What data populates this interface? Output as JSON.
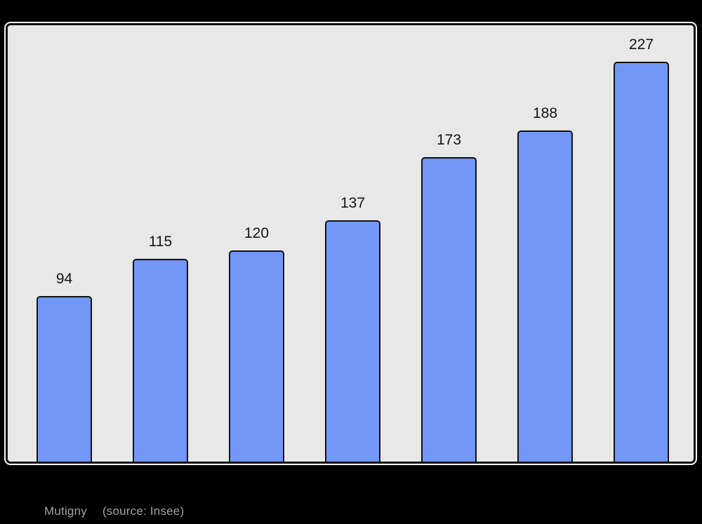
{
  "page": {
    "background": "#000000"
  },
  "caption": {
    "name": "Mutigny",
    "source": "(source: Insee)",
    "color": "#a3a3a3"
  },
  "chart_data": {
    "type": "bar",
    "values": [
      94,
      115,
      120,
      137,
      173,
      188,
      227
    ],
    "data_labels": [
      94,
      115,
      120,
      137,
      173,
      188,
      227
    ],
    "title": "",
    "xlabel": "",
    "ylabel": "",
    "x_tick_labels": [],
    "y_tick_labels": [],
    "ylim": [
      0,
      248
    ],
    "grid": false,
    "legend": false,
    "bar_fill": "#7397f6",
    "bar_border": "#111111",
    "plot_background": "#e8e8e8",
    "label_color": "#141414"
  }
}
